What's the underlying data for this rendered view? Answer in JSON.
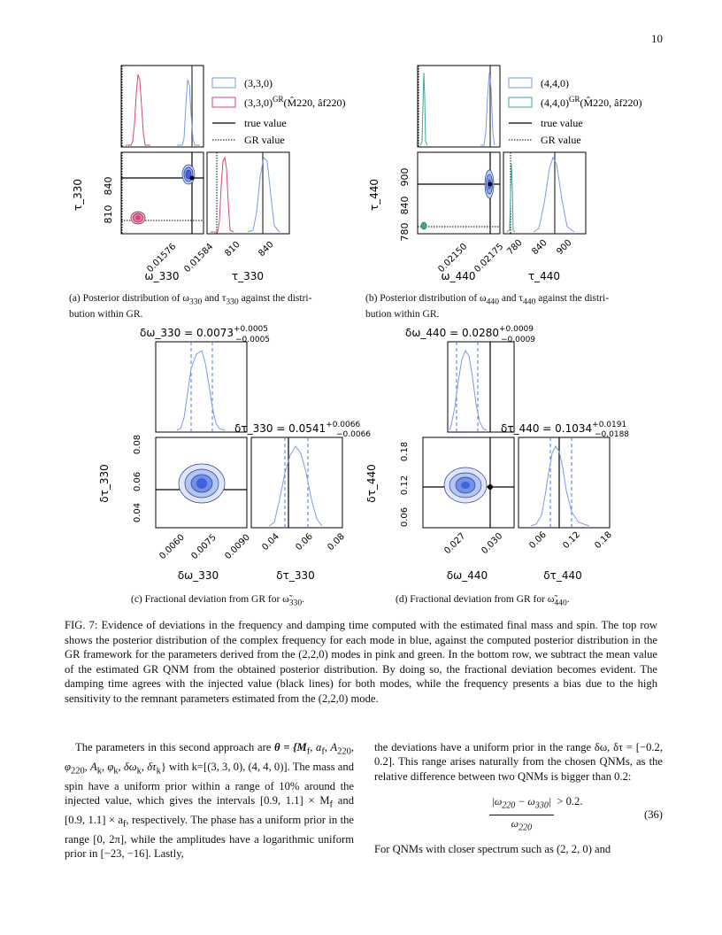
{
  "page_number": "10",
  "colors": {
    "blue": "#4169e1",
    "pink": "#d6457f",
    "green": "#3aa89a",
    "dashed": "#4a78d8"
  },
  "panel_a": {
    "legend": [
      "(3,3,0)",
      "(3,3,0)",
      "true value",
      "GR value"
    ],
    "legend_gr_sup": "GR",
    "legend_gr_args": "(M̂220, âf220)",
    "ylabel": "τ_330",
    "xlabel_left": "ω_330",
    "xlabel_right": "τ_330",
    "yticks": [
      "840",
      "810"
    ],
    "xticks_left": [
      "0.01576",
      "0.01584"
    ],
    "xticks_right": [
      "810",
      "840"
    ],
    "caption_a": "(a) Posterior distribution of ω",
    "caption_sub1": "330",
    "caption_mid": " and τ",
    "caption_sub2": "330",
    "caption_tail": " against the distri-",
    "caption_line2": "bution within GR."
  },
  "panel_b": {
    "legend": [
      "(4,4,0)",
      "(4,4,0)",
      "true value",
      "GR value"
    ],
    "legend_gr_sup": "GR",
    "legend_gr_args": "(M̂220, âf220)",
    "ylabel": "τ_440",
    "xlabel_left": "ω_440",
    "xlabel_right": "τ_440",
    "yticks": [
      "900",
      "840",
      "780"
    ],
    "xticks_left": [
      "0.02150",
      "0.02175"
    ],
    "xticks_right": [
      "780",
      "840",
      "900"
    ],
    "caption_a": "(b) Posterior distribution of ω",
    "caption_sub1": "440",
    "caption_mid": " and τ",
    "caption_sub2": "440",
    "caption_tail": " against the distri-",
    "caption_line2": "bution within GR."
  },
  "panel_c": {
    "title_top": "δω_330 = 0.0073",
    "top_sup": "+0.0005",
    "top_sub": "−0.0005",
    "title_right": "δτ_330 = 0.0541",
    "right_sup": "+0.0066",
    "right_sub": "−0.0066",
    "ylabel": "δτ_330",
    "xlabel_left": "δω_330",
    "xlabel_right": "δτ_330",
    "yticks": [
      "0.08",
      "0.06",
      "0.04"
    ],
    "xticks_left": [
      "0.0060",
      "0.0075",
      "0.0090"
    ],
    "xticks_right": [
      "0.04",
      "0.06",
      "0.08"
    ],
    "caption": "(c) Fractional deviation from GR for ω̃",
    "caption_sub": "330",
    "caption_end": "."
  },
  "panel_d": {
    "title_top": "δω_440 = 0.0280",
    "top_sup": "+0.0009",
    "top_sub": "−0.0009",
    "title_right": "δτ_440 = 0.1034",
    "right_sup": "+0.0191",
    "right_sub": "−0.0188",
    "ylabel": "δτ_440",
    "xlabel_left": "δω_440",
    "xlabel_right": "δτ_440",
    "yticks": [
      "0.18",
      "0.12",
      "0.06"
    ],
    "xticks_left": [
      "0.027",
      "0.030"
    ],
    "xticks_right": [
      "0.06",
      "0.12",
      "0.18"
    ],
    "caption": "(d) Fractional deviation from GR for ω̃",
    "caption_sub": "440",
    "caption_end": "."
  },
  "figure_caption": "FIG. 7: Evidence of deviations in the frequency and damping time computed with the estimated final mass and spin. The top row shows the posterior distribution of the complex frequency for each mode in blue, against the computed posterior distribution in the GR framework for the parameters derived from the (2,2,0) modes in pink and green. In the bottom row, we subtract the mean value of the estimated GR QNM from the obtained posterior distribution. By doing so, the fractional deviation becomes evident. The damping time agrees with the injected value (black lines) for both modes, while the frequency presents a bias due to the high sensitivity to the remnant parameters estimated from the (2,2,0) mode.",
  "left_column": {
    "p1_a": "The parameters in this second approach are",
    "p1_b": "θ = {M",
    "p1_c": "f",
    "p1_d": ", a",
    "p1_e": ", A",
    "p1_f": "220",
    "p1_g": ", φ",
    "p1_h": ", A",
    "p1_i": "k",
    "p1_j": ", φ",
    "p1_k": ", δω",
    "p1_l": ", δτ",
    "p1_m": "} with",
    "p1_rest": "k=[(3, 3, 0), (4, 4, 0)]. The mass and spin have a uniform prior within a range of 10% around the injected value, which gives the intervals [0.9, 1.1] × M",
    "p1_rest2": " and [0.9, 1.1] × a",
    "p1_rest3": ", respectively. The phase has a uniform prior in the range [0, 2π], while the amplitudes have a logarithmic uniform prior in [−23, −16]. Lastly,"
  },
  "right_column": {
    "p1": "the deviations have a uniform prior in the range δω, δτ = [−0.2, 0.2]. This range arises naturally from the chosen QNMs, as the relative difference between two QNMs is bigger than 0.2:",
    "eq_num": "|ω",
    "eq_num_s1": "220",
    "eq_num_mid": " − ω",
    "eq_num_s2": "330",
    "eq_num_end": "|",
    "eq_den": "ω",
    "eq_den_s": "220",
    "eq_rhs": "> 0.2.",
    "eq_label": "(36)",
    "p2": "For QNMs with closer spectrum such as (2, 2, 0) and"
  }
}
